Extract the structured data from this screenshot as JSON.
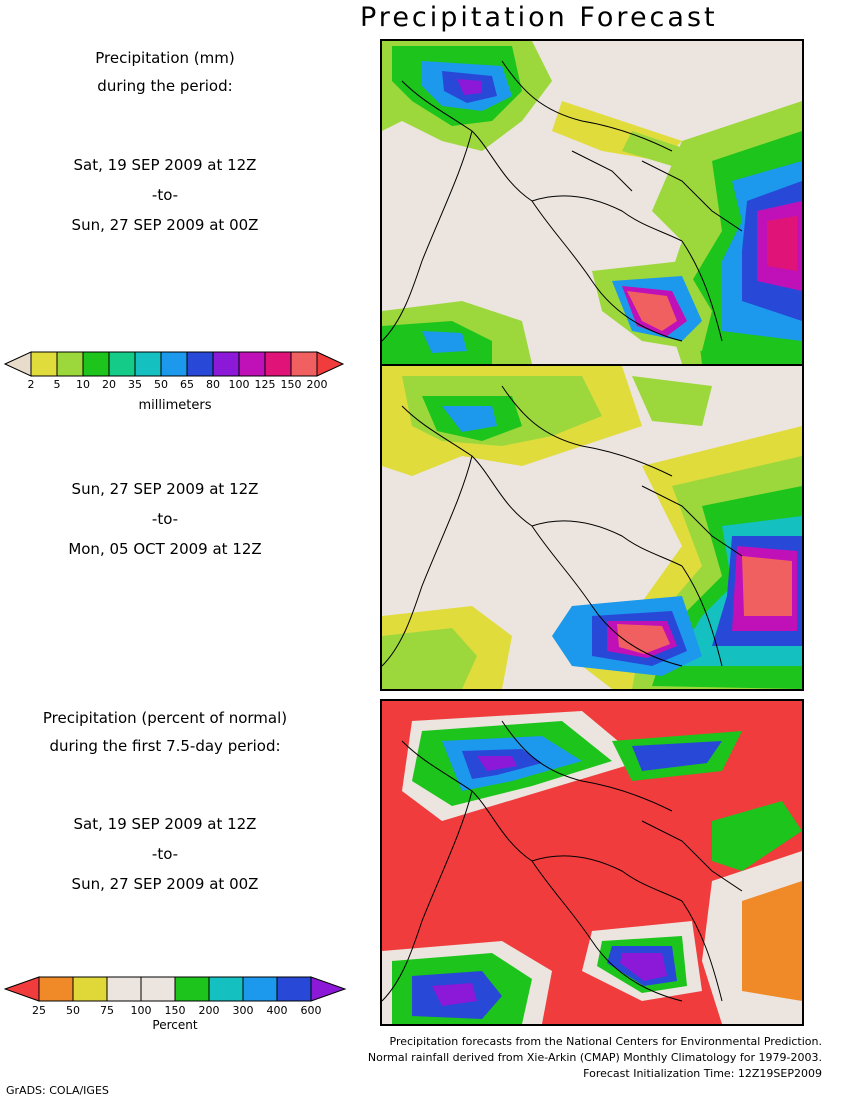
{
  "title": "Precipitation Forecast",
  "section1": {
    "heading_line1": "Precipitation (mm)",
    "heading_line2": "during the period:",
    "start": "Sat, 19 SEP 2009 at 12Z",
    "sep": "-to-",
    "end": "Sun, 27 SEP 2009 at 00Z"
  },
  "section2": {
    "start": "Sun, 27 SEP 2009 at 12Z",
    "sep": "-to-",
    "end": "Mon, 05 OCT 2009 at 12Z"
  },
  "section3": {
    "heading_line1": "Precipitation (percent of normal)",
    "heading_line2": "during the first 7.5-day period:",
    "start": "Sat, 19 SEP 2009 at 12Z",
    "sep": "-to-",
    "end": "Sun, 27 SEP 2009 at 00Z"
  },
  "mm_scale": {
    "unit": "millimeters",
    "labels": [
      "2",
      "5",
      "10",
      "20",
      "35",
      "50",
      "65",
      "80",
      "100",
      "125",
      "150",
      "200"
    ],
    "colors": [
      "#e8dccb",
      "#e0dc3c",
      "#9cd83c",
      "#1cc41c",
      "#14cc88",
      "#14c0c0",
      "#1c98ec",
      "#2848d8",
      "#8c18d8",
      "#c010b8",
      "#e01478",
      "#f06060",
      "#f03c3c"
    ]
  },
  "pct_scale": {
    "unit": "Percent",
    "labels": [
      "25",
      "50",
      "75",
      "100",
      "150",
      "200",
      "300",
      "400",
      "600"
    ],
    "colors": [
      "#f03c3c",
      "#f08a28",
      "#e0d838",
      "#ece4de",
      "#ece4de",
      "#1cc41c",
      "#14c0c0",
      "#1c98ec",
      "#2848d8",
      "#8c18d8"
    ]
  },
  "footer": {
    "line1": "Precipitation forecasts from the National Centers for Environmental Prediction.",
    "line2": "Normal rainfall derived from Xie-Arkin (CMAP) Monthly Climatology for 1979-2003.",
    "line3": "Forecast Initialization Time: 12Z19SEP2009"
  },
  "credit": "GrADS: COLA/IGES"
}
